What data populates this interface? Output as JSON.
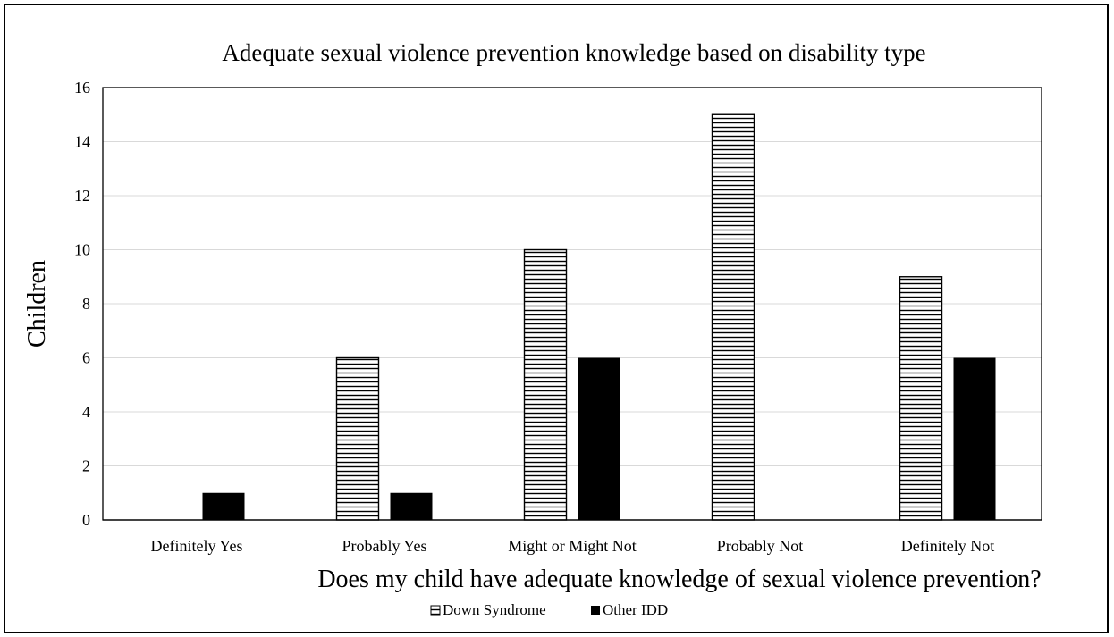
{
  "chart_data": {
    "type": "bar",
    "title": "Adequate sexual violence prevention knowledge based on disability type",
    "xlabel": "Does my child have adequate knowledge of sexual violence prevention?",
    "ylabel": "Children",
    "categories": [
      "Definitely Yes",
      "Probably Yes",
      "Might or Might Not",
      "Probably Not",
      "Definitely Not"
    ],
    "series": [
      {
        "name": "Down Syndrome",
        "values": [
          0,
          6,
          10,
          15,
          9
        ],
        "fill": "horizontal-stripes",
        "color": "#000000"
      },
      {
        "name": "Other IDD",
        "values": [
          1,
          1,
          6,
          0,
          6
        ],
        "fill": "solid",
        "color": "#000000"
      }
    ],
    "ylim": [
      0,
      16
    ],
    "yticks": [
      0,
      2,
      4,
      6,
      8,
      10,
      12,
      14,
      16
    ],
    "grid": true,
    "legend_position": "bottom"
  }
}
